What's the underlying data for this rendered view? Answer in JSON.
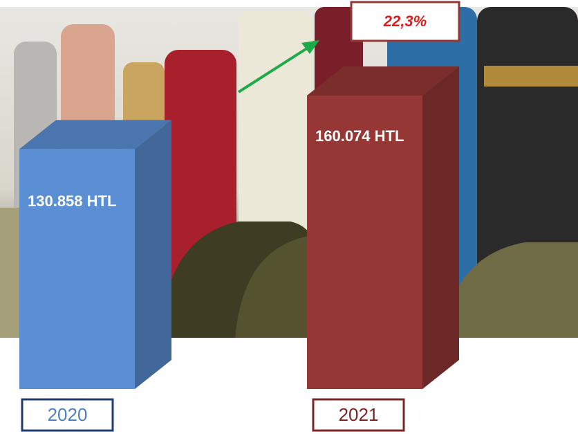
{
  "chart_data": {
    "type": "bar",
    "categories": [
      "2020",
      "2021"
    ],
    "values": [
      130858,
      160074
    ],
    "value_labels": [
      "130.858 HTL",
      "160.074 HTL"
    ],
    "colors": [
      "#5b8fd4",
      "#953735"
    ],
    "annotation": "22,3%"
  }
}
